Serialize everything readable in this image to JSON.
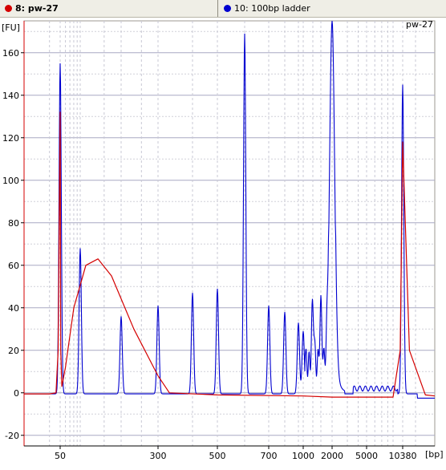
{
  "header": {
    "tabs": [
      {
        "label": "8: pw-27",
        "color": "#d40000"
      },
      {
        "label": "10: 100bp ladder",
        "color": "#0000d0"
      }
    ]
  },
  "chart_data": {
    "type": "line",
    "title": "pw-27",
    "ylabel": "[FU]",
    "xlabel": "[bp]",
    "ylim": [
      -25,
      175
    ],
    "y_ticks": [
      -20,
      0,
      20,
      40,
      60,
      80,
      100,
      120,
      140,
      160
    ],
    "x_tick_labels": [
      "50",
      "300",
      "500",
      "700",
      "1000",
      "2000",
      "5000",
      "10380"
    ],
    "x_scale": "non-linear (electropherogram sizing)",
    "grid": true,
    "colors": {
      "sample": "#d40000",
      "ladder": "#0000d0"
    },
    "series": [
      {
        "name": "8: pw-27",
        "color": "#d40000",
        "peaks_bp": [
          {
            "x": 50,
            "y": 132
          },
          {
            "x": 135,
            "y": 63
          },
          {
            "x": 10380,
            "y": 118
          }
        ],
        "points": [
          [
            "35",
            -0.5
          ],
          [
            "45",
            -0.5
          ],
          [
            "48",
            0
          ],
          [
            "49",
            20
          ],
          [
            "50",
            132
          ],
          [
            "51",
            20
          ],
          [
            "53",
            3
          ],
          [
            "60",
            12
          ],
          [
            "80",
            40
          ],
          [
            "110",
            60
          ],
          [
            "135",
            63
          ],
          [
            "170",
            55
          ],
          [
            "230",
            30
          ],
          [
            "300",
            8
          ],
          [
            "330",
            0
          ],
          [
            "500",
            -1
          ],
          [
            "1000",
            -1.5
          ],
          [
            "2000",
            -2
          ],
          [
            "5000",
            -2
          ],
          [
            "9000",
            -2
          ],
          [
            "10000",
            20
          ],
          [
            "10380",
            118
          ],
          [
            "10700",
            20
          ],
          [
            "11500",
            -1
          ],
          [
            "12000",
            -1.5
          ]
        ]
      },
      {
        "name": "10: 100bp ladder",
        "color": "#0000d0",
        "peaks": [
          {
            "bp": "50",
            "y": 155
          },
          {
            "bp": "100",
            "y": 68
          },
          {
            "bp": "200",
            "y": 36
          },
          {
            "bp": "300",
            "y": 41
          },
          {
            "bp": "400",
            "y": 47
          },
          {
            "bp": "500",
            "y": 49
          },
          {
            "bp": "600",
            "y": 169
          },
          {
            "bp": "700",
            "y": 41
          },
          {
            "bp": "800",
            "y": 38
          },
          {
            "bp": "900",
            "y": 33
          },
          {
            "bp": "1000",
            "y": 29
          },
          {
            "bp": "1200",
            "y": 28
          },
          {
            "bp": "1500",
            "y": 26
          },
          {
            "bp": "2000",
            "y": 175
          },
          {
            "bp": "10380",
            "y": 145
          }
        ]
      }
    ]
  }
}
